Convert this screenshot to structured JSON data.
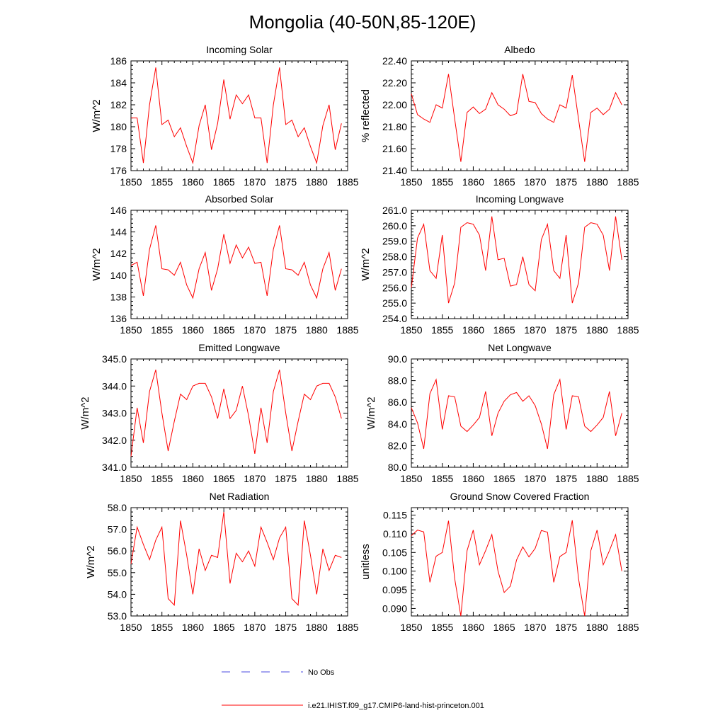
{
  "title": "Mongolia (40-50N,85-120E)",
  "colors": {
    "model": "#ff0000",
    "obs": "#4a4ae0"
  },
  "legend": {
    "entries": [
      {
        "label": "No Obs",
        "style": "dashed",
        "color": "#4a4ae0"
      },
      {
        "label": "i.e21.IHIST.f09_g17.CMIP6-land-hist-princeton.001",
        "style": "solid",
        "color": "#ff0000"
      }
    ]
  },
  "chart_data": [
    {
      "type": "line",
      "title": "Incoming Solar",
      "xlabel": "",
      "ylabel": "W/m^2",
      "xlim": [
        1850,
        1885
      ],
      "ylim": [
        176,
        186
      ],
      "x_ticks": [
        "1850",
        "1855",
        "1860",
        "1865",
        "1870",
        "1875",
        "1880",
        "1885"
      ],
      "y_ticks": [
        "176",
        "178",
        "180",
        "182",
        "184",
        "186"
      ],
      "series": [
        {
          "x": [
            1850,
            1851,
            1852,
            1853,
            1854,
            1855,
            1856,
            1857,
            1858,
            1859,
            1860,
            1861,
            1862,
            1863,
            1864,
            1865,
            1866,
            1867,
            1868,
            1869,
            1870,
            1871,
            1872,
            1873,
            1874,
            1875,
            1876,
            1877,
            1878,
            1879,
            1880,
            1881,
            1882,
            1883,
            1884
          ],
          "values": [
            180.8,
            180.8,
            176.7,
            182.0,
            185.4,
            180.2,
            180.6,
            179.1,
            179.9,
            178.2,
            176.7,
            180.1,
            182.0,
            177.9,
            180.3,
            184.3,
            180.7,
            182.9,
            182.1,
            182.9,
            180.8,
            180.8,
            176.7,
            182.0,
            185.4,
            180.2,
            180.6,
            179.1,
            179.9,
            178.2,
            176.7,
            180.1,
            182.0,
            177.9,
            180.3
          ]
        }
      ]
    },
    {
      "type": "line",
      "title": "Albedo",
      "xlabel": "",
      "ylabel": "% reflected",
      "xlim": [
        1850,
        1885
      ],
      "ylim": [
        21.4,
        22.4
      ],
      "x_ticks": [
        "1850",
        "1855",
        "1860",
        "1865",
        "1870",
        "1875",
        "1880",
        "1885"
      ],
      "y_ticks": [
        "21.40",
        "21.60",
        "21.80",
        "22.00",
        "22.20",
        "22.40"
      ],
      "series": [
        {
          "x": [
            1850,
            1851,
            1852,
            1853,
            1854,
            1855,
            1856,
            1857,
            1858,
            1859,
            1860,
            1861,
            1862,
            1863,
            1864,
            1865,
            1866,
            1867,
            1868,
            1869,
            1870,
            1871,
            1872,
            1873,
            1874,
            1875,
            1876,
            1877,
            1878,
            1879,
            1880,
            1881,
            1882,
            1883,
            1884
          ],
          "values": [
            22.1,
            21.91,
            21.87,
            21.84,
            22.0,
            21.97,
            22.28,
            21.87,
            21.48,
            21.93,
            21.98,
            21.92,
            21.96,
            22.11,
            22.0,
            21.96,
            21.9,
            21.92,
            22.28,
            22.03,
            22.02,
            21.92,
            21.87,
            21.84,
            22.0,
            21.97,
            22.27,
            21.87,
            21.48,
            21.93,
            21.97,
            21.91,
            21.96,
            22.11,
            22.0
          ]
        }
      ]
    },
    {
      "type": "line",
      "title": "Absorbed Solar",
      "xlabel": "",
      "ylabel": "W/m^2",
      "xlim": [
        1850,
        1885
      ],
      "ylim": [
        136,
        146
      ],
      "x_ticks": [
        "1850",
        "1855",
        "1860",
        "1865",
        "1870",
        "1875",
        "1880",
        "1885"
      ],
      "y_ticks": [
        "136",
        "138",
        "140",
        "142",
        "144",
        "146"
      ],
      "series": [
        {
          "x": [
            1850,
            1851,
            1852,
            1853,
            1854,
            1855,
            1856,
            1857,
            1858,
            1859,
            1860,
            1861,
            1862,
            1863,
            1864,
            1865,
            1866,
            1867,
            1868,
            1869,
            1870,
            1871,
            1872,
            1873,
            1874,
            1875,
            1876,
            1877,
            1878,
            1879,
            1880,
            1881,
            1882,
            1883,
            1884
          ],
          "values": [
            140.9,
            141.2,
            138.1,
            142.4,
            144.6,
            140.6,
            140.5,
            140.0,
            141.2,
            139.1,
            137.9,
            140.6,
            142.1,
            138.6,
            140.6,
            143.8,
            141.1,
            142.8,
            141.6,
            142.6,
            141.1,
            141.2,
            138.1,
            142.4,
            144.6,
            140.6,
            140.5,
            140.0,
            141.2,
            139.1,
            137.9,
            140.6,
            142.1,
            138.6,
            140.6
          ]
        }
      ]
    },
    {
      "type": "line",
      "title": "Incoming Longwave",
      "xlabel": "",
      "ylabel": "W/m^2",
      "xlim": [
        1850,
        1885
      ],
      "ylim": [
        254,
        261
      ],
      "x_ticks": [
        "1850",
        "1855",
        "1860",
        "1865",
        "1870",
        "1875",
        "1880",
        "1885"
      ],
      "y_ticks": [
        "254.0",
        "255.0",
        "256.0",
        "257.0",
        "258.0",
        "259.0",
        "260.0",
        "261.0"
      ],
      "series": [
        {
          "x": [
            1850,
            1851,
            1852,
            1853,
            1854,
            1855,
            1856,
            1857,
            1858,
            1859,
            1860,
            1861,
            1862,
            1863,
            1864,
            1865,
            1866,
            1867,
            1868,
            1869,
            1870,
            1871,
            1872,
            1873,
            1874,
            1875,
            1876,
            1877,
            1878,
            1879,
            1880,
            1881,
            1882,
            1883,
            1884
          ],
          "values": [
            256.0,
            259.2,
            260.1,
            257.1,
            256.6,
            259.4,
            255.0,
            256.3,
            259.9,
            260.2,
            260.1,
            259.4,
            257.1,
            260.6,
            257.8,
            257.9,
            256.1,
            256.2,
            258.0,
            256.2,
            255.8,
            259.1,
            260.1,
            257.1,
            256.6,
            259.4,
            255.0,
            256.3,
            259.9,
            260.2,
            260.1,
            259.4,
            257.1,
            260.6,
            257.8
          ]
        }
      ]
    },
    {
      "type": "line",
      "title": "Emitted Longwave",
      "xlabel": "",
      "ylabel": "W/m^2",
      "xlim": [
        1850,
        1885
      ],
      "ylim": [
        341,
        345
      ],
      "x_ticks": [
        "1850",
        "1855",
        "1860",
        "1865",
        "1870",
        "1875",
        "1880",
        "1885"
      ],
      "y_ticks": [
        "341.0",
        "342.0",
        "343.0",
        "344.0",
        "345.0"
      ],
      "series": [
        {
          "x": [
            1850,
            1851,
            1852,
            1853,
            1854,
            1855,
            1856,
            1857,
            1858,
            1859,
            1860,
            1861,
            1862,
            1863,
            1864,
            1865,
            1866,
            1867,
            1868,
            1869,
            1870,
            1871,
            1872,
            1873,
            1874,
            1875,
            1876,
            1877,
            1878,
            1879,
            1880,
            1881,
            1882,
            1883,
            1884
          ],
          "values": [
            341.4,
            343.2,
            341.9,
            343.8,
            344.6,
            343.0,
            341.6,
            342.7,
            343.7,
            343.5,
            344.0,
            344.1,
            344.1,
            343.6,
            342.8,
            343.9,
            342.8,
            343.1,
            344.0,
            342.9,
            341.5,
            343.2,
            341.9,
            343.8,
            344.6,
            343.0,
            341.6,
            342.7,
            343.7,
            343.5,
            344.0,
            344.1,
            344.1,
            343.6,
            342.8
          ]
        }
      ]
    },
    {
      "type": "line",
      "title": "Net Longwave",
      "xlabel": "",
      "ylabel": "W/m^2",
      "xlim": [
        1850,
        1885
      ],
      "ylim": [
        80,
        90
      ],
      "x_ticks": [
        "1850",
        "1855",
        "1860",
        "1865",
        "1870",
        "1875",
        "1880",
        "1885"
      ],
      "y_ticks": [
        "80.0",
        "82.0",
        "84.0",
        "86.0",
        "88.0",
        "90.0"
      ],
      "series": [
        {
          "x": [
            1850,
            1851,
            1852,
            1853,
            1854,
            1855,
            1856,
            1857,
            1858,
            1859,
            1860,
            1861,
            1862,
            1863,
            1864,
            1865,
            1866,
            1867,
            1868,
            1869,
            1870,
            1871,
            1872,
            1873,
            1874,
            1875,
            1876,
            1877,
            1878,
            1879,
            1880,
            1881,
            1882,
            1883,
            1884
          ],
          "values": [
            85.5,
            84.1,
            81.7,
            86.8,
            88.1,
            83.5,
            86.6,
            86.5,
            83.8,
            83.3,
            83.9,
            84.6,
            87.0,
            82.9,
            85.0,
            86.1,
            86.7,
            86.9,
            86.1,
            86.6,
            85.7,
            84.0,
            81.7,
            86.7,
            88.1,
            83.5,
            86.6,
            86.5,
            83.8,
            83.3,
            83.9,
            84.6,
            87.0,
            82.9,
            85.0
          ]
        }
      ]
    },
    {
      "type": "line",
      "title": "Net Radiation",
      "xlabel": "",
      "ylabel": "W/m^2",
      "xlim": [
        1850,
        1885
      ],
      "ylim": [
        53,
        58
      ],
      "x_ticks": [
        "1850",
        "1855",
        "1860",
        "1865",
        "1870",
        "1875",
        "1880",
        "1885"
      ],
      "y_ticks": [
        "53.0",
        "54.0",
        "55.0",
        "56.0",
        "57.0",
        "58.0"
      ],
      "series": [
        {
          "x": [
            1850,
            1851,
            1852,
            1853,
            1854,
            1855,
            1856,
            1857,
            1858,
            1859,
            1860,
            1861,
            1862,
            1863,
            1864,
            1865,
            1866,
            1867,
            1868,
            1869,
            1870,
            1871,
            1872,
            1873,
            1874,
            1875,
            1876,
            1877,
            1878,
            1879,
            1880,
            1881,
            1882,
            1883,
            1884
          ],
          "values": [
            55.4,
            57.1,
            56.3,
            55.6,
            56.5,
            57.1,
            53.8,
            53.5,
            57.4,
            55.8,
            54.0,
            56.1,
            55.1,
            55.8,
            55.7,
            57.8,
            54.5,
            55.9,
            55.5,
            56.0,
            55.3,
            57.1,
            56.4,
            55.6,
            56.6,
            57.1,
            53.8,
            53.5,
            57.4,
            55.8,
            54.0,
            56.1,
            55.1,
            55.8,
            55.7
          ]
        }
      ]
    },
    {
      "type": "line",
      "title": "Ground Snow Covered Fraction",
      "xlabel": "",
      "ylabel": "unitless",
      "xlim": [
        1850,
        1885
      ],
      "ylim": [
        0.088,
        0.117
      ],
      "x_ticks": [
        "1850",
        "1855",
        "1860",
        "1865",
        "1870",
        "1875",
        "1880",
        "1885"
      ],
      "y_ticks": [
        "0.090",
        "0.095",
        "0.100",
        "0.105",
        "0.110",
        "0.115"
      ],
      "y_tick_values": [
        0.09,
        0.095,
        0.1,
        0.105,
        0.11,
        0.115
      ],
      "series": [
        {
          "x": [
            1850,
            1851,
            1852,
            1853,
            1854,
            1855,
            1856,
            1857,
            1858,
            1859,
            1860,
            1861,
            1862,
            1863,
            1864,
            1865,
            1866,
            1867,
            1868,
            1869,
            1870,
            1871,
            1872,
            1873,
            1874,
            1875,
            1876,
            1877,
            1878,
            1879,
            1880,
            1881,
            1882,
            1883,
            1884
          ],
          "values": [
            0.1095,
            0.111,
            0.1105,
            0.097,
            0.104,
            0.105,
            0.1135,
            0.098,
            0.088,
            0.1055,
            0.111,
            0.1017,
            0.1055,
            0.1098,
            0.1,
            0.0943,
            0.096,
            0.103,
            0.1065,
            0.1038,
            0.1061,
            0.1109,
            0.1104,
            0.097,
            0.1039,
            0.105,
            0.1136,
            0.098,
            0.088,
            0.1055,
            0.111,
            0.1017,
            0.1055,
            0.1098,
            0.1
          ]
        }
      ]
    }
  ]
}
